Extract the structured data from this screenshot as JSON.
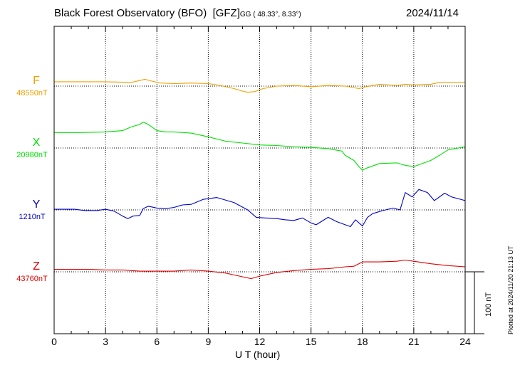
{
  "header": {
    "observatory": "Black Forest Observatory (BFO)",
    "agency": "[GFZ]",
    "coords": "GG ( 48.33°,   8.33°)",
    "date": "2024/11/14"
  },
  "footer": {
    "xlabel": "U T (hour)",
    "plotted": "Plotted at 2024/11/20 21:13 UT",
    "scale_label": "100 nT"
  },
  "chart_data": {
    "type": "line",
    "xlim": [
      0,
      24
    ],
    "x_ticks": [
      0,
      3,
      6,
      9,
      12,
      15,
      18,
      21,
      24
    ],
    "x_tick_labels": [
      "0",
      "3",
      "6",
      "9",
      "12",
      "15",
      "18",
      "21",
      "24"
    ],
    "grid": true,
    "scale_bar_nT": 100,
    "series": [
      {
        "name": "F",
        "baseline_label": "48550nT",
        "baseline_nT": 48550,
        "color": "#f0a000",
        "x": [
          0,
          1.5,
          3,
          4.5,
          5,
          5.3,
          5.7,
          6.2,
          7,
          8,
          9,
          9.7,
          10.5,
          11,
          11.3,
          11.7,
          12.2,
          13,
          14,
          15,
          16,
          17,
          17.8,
          18.2,
          19,
          20,
          20.5,
          21,
          22,
          22.5,
          23,
          24
        ],
        "y": [
          48557,
          48557,
          48557,
          48556,
          48559,
          48561,
          48558,
          48555,
          48554,
          48555,
          48554,
          48551,
          48546,
          48542,
          48540,
          48541,
          48546,
          48550,
          48551,
          48549,
          48551,
          48550,
          48546,
          48549,
          48553,
          48551,
          48553,
          48552,
          48553,
          48556,
          48556,
          48556
        ]
      },
      {
        "name": "X",
        "baseline_label": "20980nT",
        "baseline_nT": 20980,
        "color": "#00e000",
        "x": [
          0,
          1.5,
          3,
          4,
          4.5,
          5,
          5.2,
          5.5,
          6,
          6.5,
          7,
          8,
          9,
          10,
          11,
          12,
          13,
          14,
          15,
          16,
          16.8,
          17,
          17.5,
          17.8,
          18,
          18.2,
          19,
          20,
          20.5,
          21,
          22,
          22.5,
          23,
          24
        ],
        "y": [
          21005,
          21005,
          21006,
          21008,
          21014,
          21018,
          21022,
          21018,
          21008,
          21006,
          21006,
          21004,
          20998,
          20991,
          20988,
          20985,
          20984,
          20982,
          20981,
          20979,
          20975,
          20968,
          20960,
          20950,
          20944,
          20947,
          20955,
          20956,
          20952,
          20950,
          20960,
          20968,
          20977,
          20982
        ]
      },
      {
        "name": "Y",
        "baseline_label": "1210nT",
        "baseline_nT": 1210,
        "color": "#0000cc",
        "x": [
          0,
          1.2,
          1.8,
          2.5,
          3,
          3.5,
          4,
          4.3,
          4.6,
          5,
          5.2,
          5.5,
          6,
          6.5,
          7,
          7.5,
          8,
          8.7,
          9.5,
          10.5,
          11.3,
          11.8,
          12.3,
          13,
          13.5,
          14,
          14.5,
          15,
          15.3,
          16,
          16.5,
          17,
          17.3,
          17.6,
          18,
          18.3,
          18.6,
          19.2,
          19.8,
          20.2,
          20.5,
          20.9,
          21.3,
          21.8,
          22.2,
          22.8,
          23.2,
          24
        ],
        "y": [
          1211,
          1211,
          1209,
          1209,
          1211,
          1208,
          1200,
          1196,
          1200,
          1201,
          1212,
          1216,
          1213,
          1212,
          1214,
          1218,
          1219,
          1227,
          1230,
          1222,
          1210,
          1198,
          1197,
          1196,
          1194,
          1193,
          1197,
          1189,
          1186,
          1198,
          1191,
          1186,
          1183,
          1194,
          1184,
          1198,
          1204,
          1209,
          1213,
          1210,
          1238,
          1231,
          1243,
          1238,
          1225,
          1237,
          1231,
          1225
        ]
      },
      {
        "name": "Z",
        "baseline_label": "43760nT",
        "baseline_nT": 43760,
        "color": "#e00000",
        "x": [
          0,
          1,
          2,
          3,
          4,
          5,
          6,
          7,
          8,
          9,
          10,
          10.5,
          11,
          11.5,
          12,
          13,
          14,
          15,
          16,
          17,
          17.5,
          18,
          19,
          20,
          20.5,
          21,
          22,
          23,
          24
        ],
        "y": [
          43764,
          43764,
          43764,
          43763,
          43763,
          43761,
          43761,
          43761,
          43763,
          43761,
          43758,
          43755,
          43752,
          43749,
          43753,
          43759,
          43762,
          43764,
          43765,
          43768,
          43769,
          43776,
          43776,
          43777,
          43779,
          43777,
          43773,
          43770,
          43768
        ]
      }
    ]
  }
}
